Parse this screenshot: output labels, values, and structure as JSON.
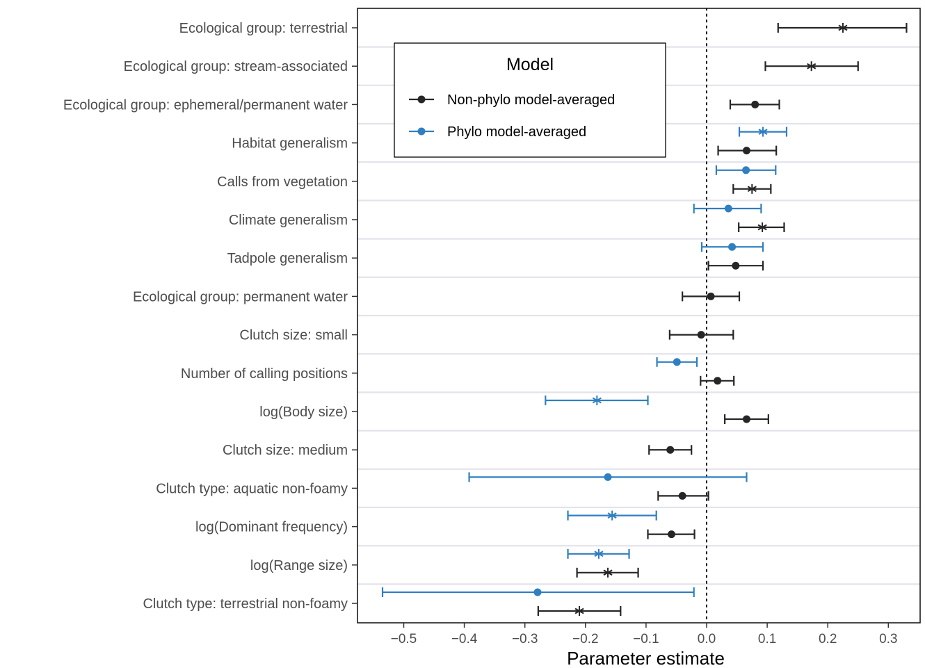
{
  "chart_data": {
    "type": "errorbar",
    "title": "",
    "xlabel": "Parameter estimate",
    "ylabel": "",
    "xlim": [
      -0.565,
      0.34
    ],
    "x_ticks": [
      -0.5,
      -0.4,
      -0.3,
      -0.2,
      -0.1,
      0.0,
      0.1,
      0.2,
      0.3
    ],
    "x_tick_labels": [
      "−0.5",
      "−0.4",
      "−0.3",
      "−0.2",
      "−0.1",
      "0.0",
      "0.1",
      "0.2",
      "0.3"
    ],
    "reference_line": 0.0,
    "grid": "horizontal only",
    "categories": [
      "Ecological group: terrestrial",
      "Ecological group: stream-associated",
      "Ecological group: ephemeral/permanent water",
      "Habitat generalism",
      "Calls from vegetation",
      "Climate generalism",
      "Tadpole generalism",
      "Ecological group: permanent water",
      "Clutch size: small",
      "Number of calling positions",
      "log(Body size)",
      "Clutch size: medium",
      "Clutch type: aquatic non-foamy",
      "log(Dominant frequency)",
      "log(Range size)",
      "Clutch type: terrestrial non-foamy"
    ],
    "legend": {
      "title": "Model",
      "position": "top-left inside plot",
      "entries": [
        "Non-phylo model-averaged",
        "Phylo model-averaged"
      ]
    },
    "series": [
      {
        "name": "Non-phylo model-averaged",
        "color": "#262626",
        "points": [
          {
            "category": "Ecological group: terrestrial",
            "estimate": 0.225,
            "lower": 0.118,
            "upper": 0.33,
            "marker": "star"
          },
          {
            "category": "Ecological group: stream-associated",
            "estimate": 0.173,
            "lower": 0.097,
            "upper": 0.25,
            "marker": "star"
          },
          {
            "category": "Ecological group: ephemeral/permanent water",
            "estimate": 0.08,
            "lower": 0.039,
            "upper": 0.12,
            "marker": "dot"
          },
          {
            "category": "Habitat generalism",
            "estimate": 0.066,
            "lower": 0.019,
            "upper": 0.115,
            "marker": "dot"
          },
          {
            "category": "Calls from vegetation",
            "estimate": 0.075,
            "lower": 0.044,
            "upper": 0.106,
            "marker": "star"
          },
          {
            "category": "Climate generalism",
            "estimate": 0.092,
            "lower": 0.053,
            "upper": 0.128,
            "marker": "star"
          },
          {
            "category": "Tadpole generalism",
            "estimate": 0.048,
            "lower": 0.003,
            "upper": 0.093,
            "marker": "dot"
          },
          {
            "category": "Ecological group: permanent water",
            "estimate": 0.007,
            "lower": -0.04,
            "upper": 0.054,
            "marker": "dot"
          },
          {
            "category": "Clutch size: small",
            "estimate": -0.009,
            "lower": -0.061,
            "upper": 0.044,
            "marker": "dot"
          },
          {
            "category": "Number of calling positions",
            "estimate": 0.018,
            "lower": -0.01,
            "upper": 0.045,
            "marker": "dot"
          },
          {
            "category": "log(Body size)",
            "estimate": 0.066,
            "lower": 0.03,
            "upper": 0.102,
            "marker": "dot"
          },
          {
            "category": "Clutch size: medium",
            "estimate": -0.06,
            "lower": -0.095,
            "upper": -0.025,
            "marker": "dot"
          },
          {
            "category": "Clutch type: aquatic non-foamy",
            "estimate": -0.04,
            "lower": -0.08,
            "upper": 0.003,
            "marker": "dot"
          },
          {
            "category": "log(Dominant frequency)",
            "estimate": -0.058,
            "lower": -0.097,
            "upper": -0.02,
            "marker": "dot"
          },
          {
            "category": "log(Range size)",
            "estimate": -0.163,
            "lower": -0.214,
            "upper": -0.113,
            "marker": "star"
          },
          {
            "category": "Clutch type: terrestrial non-foamy",
            "estimate": -0.21,
            "lower": -0.278,
            "upper": -0.142,
            "marker": "star"
          }
        ]
      },
      {
        "name": "Phylo model-averaged",
        "color": "#2f7fc1",
        "points": [
          {
            "category": "Habitat generalism",
            "estimate": 0.093,
            "lower": 0.054,
            "upper": 0.132,
            "marker": "star"
          },
          {
            "category": "Calls from vegetation",
            "estimate": 0.065,
            "lower": 0.016,
            "upper": 0.114,
            "marker": "dot"
          },
          {
            "category": "Climate generalism",
            "estimate": 0.036,
            "lower": -0.021,
            "upper": 0.09,
            "marker": "dot"
          },
          {
            "category": "Tadpole generalism",
            "estimate": 0.042,
            "lower": -0.008,
            "upper": 0.093,
            "marker": "dot"
          },
          {
            "category": "Number of calling positions",
            "estimate": -0.049,
            "lower": -0.082,
            "upper": -0.016,
            "marker": "dot"
          },
          {
            "category": "log(Body size)",
            "estimate": -0.181,
            "lower": -0.266,
            "upper": -0.097,
            "marker": "star"
          },
          {
            "category": "Clutch type: aquatic non-foamy",
            "estimate": -0.163,
            "lower": -0.392,
            "upper": 0.066,
            "marker": "dot"
          },
          {
            "category": "log(Dominant frequency)",
            "estimate": -0.156,
            "lower": -0.229,
            "upper": -0.083,
            "marker": "star"
          },
          {
            "category": "log(Range size)",
            "estimate": -0.178,
            "lower": -0.229,
            "upper": -0.128,
            "marker": "star"
          },
          {
            "category": "Clutch type: terrestrial non-foamy",
            "estimate": -0.279,
            "lower": -0.535,
            "upper": -0.021,
            "marker": "dot"
          }
        ]
      }
    ]
  }
}
